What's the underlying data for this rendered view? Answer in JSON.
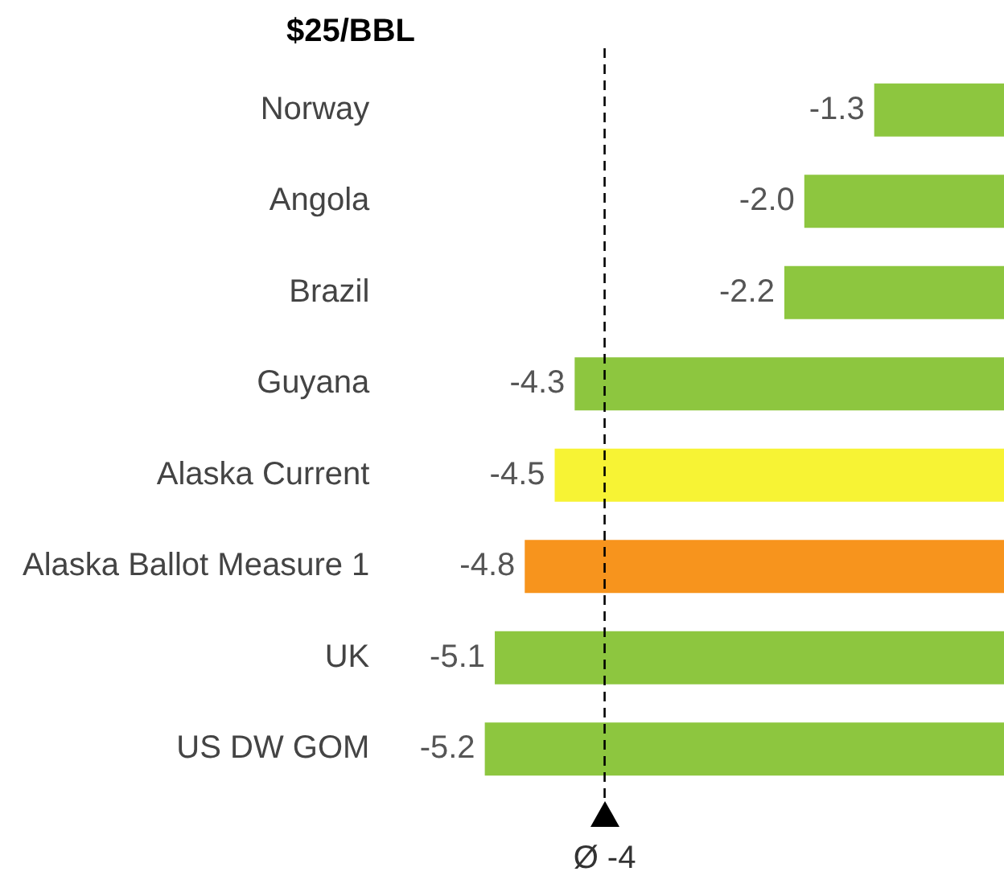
{
  "chart_data": {
    "type": "bar",
    "orientation": "horizontal",
    "title": "$25/BBL",
    "categories": [
      "Norway",
      "Angola",
      "Brazil",
      "Guyana",
      "Alaska Current",
      "Alaska Ballot Measure 1",
      "UK",
      "US DW GOM"
    ],
    "values": [
      -1.3,
      -2.0,
      -2.2,
      -4.3,
      -4.5,
      -4.8,
      -5.1,
      -5.2
    ],
    "colors": [
      "#8dc63f",
      "#8dc63f",
      "#8dc63f",
      "#8dc63f",
      "#f7f334",
      "#f7941d",
      "#8dc63f",
      "#8dc63f"
    ],
    "value_labels": [
      "-1.3",
      "-2.0",
      "-2.2",
      "-4.3",
      "-4.5",
      "-4.8",
      "-5.1",
      "-5.2"
    ],
    "tick_labels": "y",
    "legend": false,
    "ref_lines": [
      {
        "axis": "x",
        "value": -4,
        "label": "Ø -4",
        "line_style": "dashed",
        "color": "#000000"
      }
    ]
  }
}
